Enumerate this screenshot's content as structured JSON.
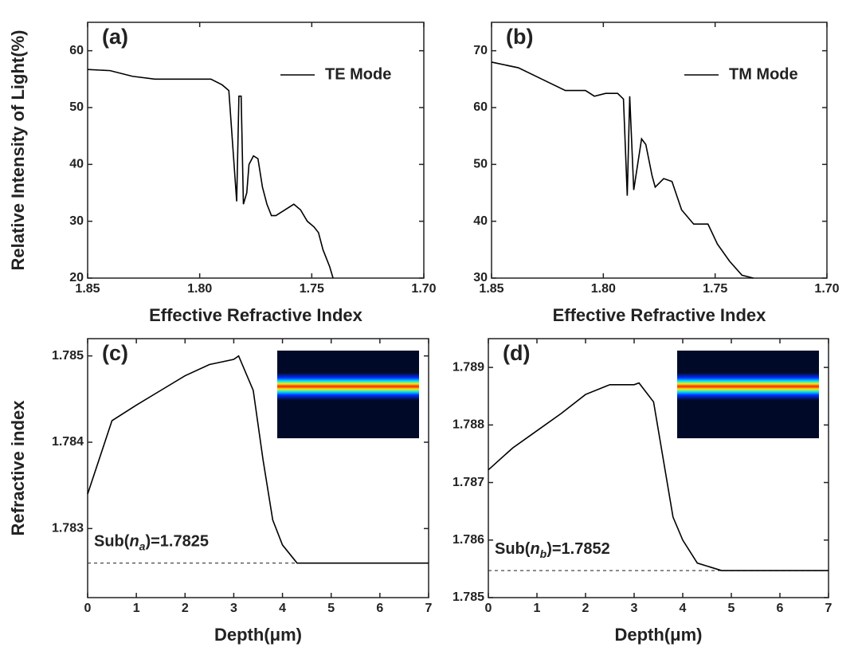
{
  "chart_data": [
    {
      "type": "line",
      "label": "(a)",
      "xlabel": "Effective Refractive Index",
      "ylabel": "Relative Intensity of Light(%)",
      "xlim": [
        1.85,
        1.7
      ],
      "xticks": [
        1.85,
        {
          "value": 1.8,
          "label": "1.80"
        },
        1.75,
        {
          "value": 1.7,
          "label": "1.70"
        }
      ],
      "ylim": [
        20,
        65
      ],
      "yticks": [
        20,
        30,
        40,
        50,
        60
      ],
      "legend": true,
      "series": [
        {
          "name": "TE Mode",
          "color": "#000000",
          "x": [
            1.85,
            1.84,
            1.83,
            1.82,
            1.8,
            1.795,
            1.79,
            1.787,
            1.7835,
            1.7825,
            1.7815,
            1.7805,
            1.779,
            1.778,
            1.776,
            1.774,
            1.772,
            1.77,
            1.768,
            1.766,
            1.762,
            1.758,
            1.755,
            1.752,
            1.749,
            1.747,
            1.745,
            1.742,
            1.7405
          ],
          "values": [
            56.7,
            56.5,
            55.5,
            55,
            55,
            55,
            54,
            53,
            33.5,
            52,
            52,
            33,
            35,
            40,
            41.5,
            41,
            36,
            33,
            31,
            31,
            32,
            33,
            32,
            30,
            29,
            28,
            25,
            22,
            20
          ]
        }
      ]
    },
    {
      "type": "line",
      "label": "(b)",
      "xlabel": "Effective Refractive Index",
      "xlim": [
        1.85,
        1.7
      ],
      "xticks": [
        1.85,
        {
          "value": 1.8,
          "label": "1.80"
        },
        1.75,
        {
          "value": 1.7,
          "label": "1.70"
        }
      ],
      "ylim": [
        30,
        75
      ],
      "yticks": [
        30,
        40,
        50,
        60,
        70
      ],
      "legend": true,
      "series": [
        {
          "name": "TM Mode",
          "color": "#000000",
          "x": [
            1.85,
            1.838,
            1.8275,
            1.817,
            1.808,
            1.804,
            1.799,
            1.7936,
            1.791,
            1.7893,
            1.7882,
            1.7864,
            1.7829,
            1.781,
            1.7782,
            1.7768,
            1.773,
            1.7693,
            1.765,
            1.7596,
            1.7532,
            1.749,
            1.7436,
            1.738,
            1.7329
          ],
          "values": [
            68,
            67,
            65,
            63,
            63,
            62,
            62.5,
            62.5,
            61.5,
            44.5,
            62,
            45.5,
            54.5,
            53.5,
            48,
            46,
            47.5,
            47,
            42,
            39.5,
            39.5,
            36,
            33,
            30.5,
            30
          ]
        }
      ]
    },
    {
      "type": "line",
      "label": "(c)",
      "xlabel": "Depth(μm)",
      "ylabel": "Refractive index",
      "xlim": [
        0,
        7
      ],
      "xticks": [
        0,
        1,
        2,
        3,
        4,
        5,
        6,
        7
      ],
      "ylim": [
        1.7822,
        1.7852
      ],
      "yticks": [
        1.783,
        1.784,
        1.785
      ],
      "inset_image": true,
      "hline": 1.7826,
      "annotation": {
        "prefix": "Sub(",
        "var": "n",
        "sub": "a",
        "suffix": ")=1.7825"
      },
      "series": [
        {
          "color": "#000000",
          "x": [
            0,
            0.5,
            1,
            1.5,
            2,
            2.5,
            3,
            3.1,
            3.4,
            3.6,
            3.8,
            4,
            4.3,
            4.6,
            7
          ],
          "values": [
            1.7834,
            1.78425,
            1.78443,
            1.7846,
            1.78477,
            1.7849,
            1.78496,
            1.785,
            1.7846,
            1.7838,
            1.7831,
            1.78281,
            1.7826,
            1.7826,
            1.7826
          ]
        }
      ]
    },
    {
      "type": "line",
      "label": "(d)",
      "xlabel": "Depth(μm)",
      "xlim": [
        0,
        7
      ],
      "xticks": [
        0,
        1,
        2,
        3,
        4,
        5,
        6,
        7
      ],
      "ylim": [
        1.785,
        1.7895
      ],
      "yticks": [
        1.785,
        1.786,
        1.787,
        1.788,
        1.789
      ],
      "inset_image": true,
      "hline": 1.78547,
      "annotation": {
        "prefix": "Sub(",
        "var": "n",
        "sub": "b",
        "suffix": ")=1.7852"
      },
      "series": [
        {
          "color": "#000000",
          "x": [
            0,
            0.5,
            1,
            1.5,
            2,
            2.5,
            3,
            3.1,
            3.4,
            3.6,
            3.8,
            4,
            4.3,
            4.8,
            7
          ],
          "values": [
            1.78722,
            1.7876,
            1.7879,
            1.7882,
            1.78853,
            1.7887,
            1.7887,
            1.78873,
            1.7884,
            1.7874,
            1.7864,
            1.786,
            1.7856,
            1.78547,
            1.78547
          ]
        }
      ]
    }
  ]
}
